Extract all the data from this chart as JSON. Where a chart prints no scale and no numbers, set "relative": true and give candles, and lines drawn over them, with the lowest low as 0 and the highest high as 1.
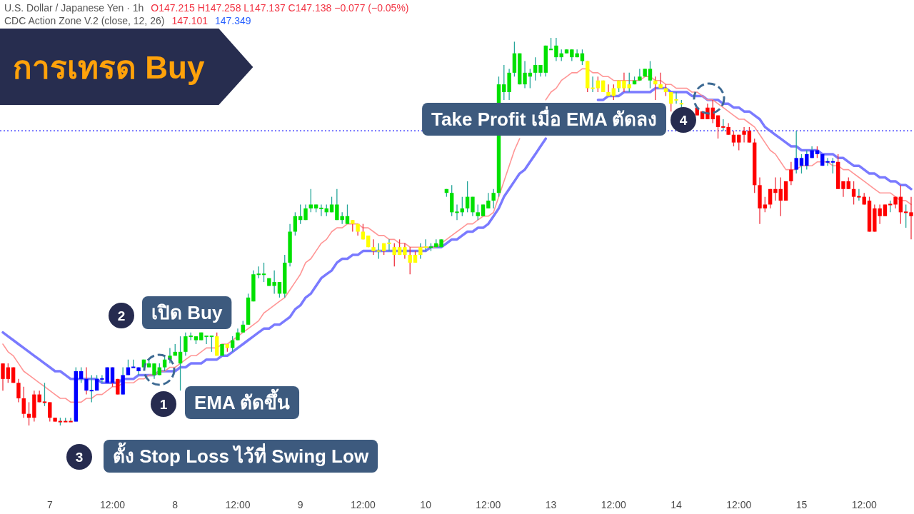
{
  "chart_data": {
    "type": "candlestick",
    "title": "การเทรด Buy",
    "relative": true,
    "categories": [
      null,
      null,
      null,
      null,
      null,
      null,
      null,
      null,
      null,
      "7",
      null,
      null,
      null,
      null,
      null,
      null,
      null,
      null,
      null,
      null,
      null,
      "12:00",
      null,
      null,
      null,
      null,
      null,
      null,
      null,
      null,
      null,
      null,
      null,
      "8",
      null,
      null,
      null,
      null,
      null,
      null,
      null,
      null,
      null,
      null,
      null,
      "12:00",
      null,
      null,
      null,
      null,
      null,
      null,
      null,
      null,
      null,
      null,
      null,
      "9",
      null,
      null,
      null,
      null,
      null,
      null,
      null,
      null,
      null,
      null,
      null,
      "12:00",
      null,
      null,
      null,
      null,
      null,
      null,
      null,
      null,
      null,
      null,
      null,
      "10",
      null,
      null,
      null,
      null,
      null,
      null,
      null,
      null,
      null,
      null,
      null,
      "12:00",
      null,
      null,
      null,
      null,
      null,
      null,
      null,
      null,
      null,
      null,
      null,
      "13",
      null,
      null,
      null,
      null,
      null,
      null,
      null,
      null,
      null,
      null,
      null,
      "12:00",
      null,
      null,
      null,
      null,
      null,
      null,
      null,
      null,
      null,
      null,
      null,
      "14",
      null,
      null,
      null,
      null,
      null,
      null,
      null,
      null,
      null,
      null,
      null,
      "12:00",
      null,
      null,
      null,
      null,
      null,
      null,
      null,
      null,
      null,
      null,
      null,
      "15",
      null,
      null,
      null,
      null,
      null,
      null,
      null,
      null,
      null,
      null,
      null,
      "12:00",
      null,
      null,
      null,
      null,
      null,
      null,
      null,
      null,
      null
    ],
    "ohlc": [
      [
        0.16,
        0.16,
        0.09,
        0.12
      ],
      [
        0.15,
        0.16,
        0.11,
        0.12
      ],
      [
        0.15,
        0.15,
        0.11,
        0.11
      ],
      [
        0.11,
        0.12,
        0.06,
        0.07
      ],
      [
        0.07,
        0.1,
        0.02,
        0.03
      ],
      [
        0.03,
        0.06,
        0,
        0.02
      ],
      [
        0.08,
        0.09,
        0.01,
        0.02
      ],
      [
        0.08,
        0.09,
        0.06,
        0.06
      ],
      [
        0.06,
        0.11,
        0.05,
        0.06
      ],
      [
        0.06,
        0.06,
        0.01,
        0.02
      ],
      [
        0.02,
        0.02,
        0.01,
        0.01
      ],
      [
        0.01,
        0.02,
        0,
        0.01
      ],
      [
        0.01,
        0.02,
        0.01,
        0.01
      ],
      [
        0.01,
        0.02,
        0.01,
        0.01
      ],
      [
        0.01,
        0.15,
        0.01,
        0.14
      ],
      [
        0.12,
        0.15,
        0.11,
        0.14
      ],
      [
        0.12,
        0.15,
        0.08,
        0.09
      ],
      [
        0.09,
        0.13,
        0.06,
        0.09
      ],
      [
        0.09,
        0.13,
        0.09,
        0.12
      ],
      [
        0.12,
        0.13,
        0.11,
        0.12
      ],
      [
        0.11,
        0.15,
        0.11,
        0.15
      ],
      [
        0.15,
        0.15,
        0.1,
        0.11
      ],
      [
        0.12,
        0.12,
        0.08,
        0.08
      ],
      [
        0.08,
        0.15,
        0.08,
        0.13
      ],
      [
        0.13,
        0.17,
        0.13,
        0.15
      ],
      [
        0.15,
        0.17,
        0.15,
        0.15
      ],
      [
        0.14,
        0.15,
        0.13,
        0.15
      ],
      [
        0.15,
        0.17,
        0.15,
        0.17
      ],
      [
        0.15,
        0.17,
        0.15,
        0.16
      ],
      [
        0.13,
        0.16,
        0.12,
        0.16
      ],
      [
        0.13,
        0.16,
        0.13,
        0.15
      ],
      [
        0.15,
        0.18,
        0.14,
        0.17
      ],
      [
        0.17,
        0.2,
        0.16,
        0.18
      ],
      [
        0.18,
        0.21,
        0.18,
        0.19
      ],
      [
        0.16,
        0.23,
        0.09,
        0.19
      ],
      [
        0.19,
        0.24,
        0.18,
        0.23
      ],
      [
        0.23,
        0.24,
        0.22,
        0.23
      ],
      [
        0.22,
        0.23,
        0.21,
        0.23
      ],
      [
        0.22,
        0.24,
        0.22,
        0.24
      ],
      [
        0.23,
        0.23,
        0.21,
        0.23
      ],
      [
        0.23,
        0.23,
        0.19,
        0.23
      ],
      [
        0.23,
        0.24,
        0.18,
        0.18
      ],
      [
        0.18,
        0.21,
        0.18,
        0.21
      ],
      [
        0.21,
        0.21,
        0.19,
        0.2
      ],
      [
        0.2,
        0.23,
        0.19,
        0.22
      ],
      [
        0.22,
        0.25,
        0.22,
        0.24
      ],
      [
        0.24,
        0.27,
        0.24,
        0.26
      ],
      [
        0.26,
        0.34,
        0.26,
        0.33
      ],
      [
        0.32,
        0.4,
        0.32,
        0.39
      ],
      [
        0.39,
        0.41,
        0.38,
        0.39
      ],
      [
        0.39,
        0.42,
        0.37,
        0.39
      ],
      [
        0.36,
        0.38,
        0.36,
        0.38
      ],
      [
        0.36,
        0.4,
        0.34,
        0.37
      ],
      [
        0.34,
        0.37,
        0.33,
        0.37
      ],
      [
        0.34,
        0.44,
        0.33,
        0.42
      ],
      [
        0.42,
        0.52,
        0.41,
        0.5
      ],
      [
        0.5,
        0.55,
        0.49,
        0.54
      ],
      [
        0.53,
        0.57,
        0.52,
        0.54
      ],
      [
        0.53,
        0.57,
        0.53,
        0.56
      ],
      [
        0.56,
        0.61,
        0.55,
        0.57
      ],
      [
        0.56,
        0.57,
        0.55,
        0.57
      ],
      [
        0.56,
        0.57,
        0.54,
        0.56
      ],
      [
        0.55,
        0.57,
        0.54,
        0.56
      ],
      [
        0.55,
        0.59,
        0.55,
        0.57
      ],
      [
        0.53,
        0.61,
        0.53,
        0.57
      ],
      [
        0.53,
        0.55,
        0.52,
        0.54
      ],
      [
        0.52,
        0.57,
        0.52,
        0.54
      ],
      [
        0.53,
        0.53,
        0.5,
        0.52
      ],
      [
        0.52,
        0.52,
        0.49,
        0.5
      ],
      [
        0.5,
        0.52,
        0.48,
        0.48
      ],
      [
        0.49,
        0.49,
        0.46,
        0.46
      ],
      [
        0.46,
        0.48,
        0.44,
        0.45
      ],
      [
        0.45,
        0.47,
        0.43,
        0.45
      ],
      [
        0.47,
        0.47,
        0.44,
        0.45
      ],
      [
        0.47,
        0.48,
        0.45,
        0.47
      ],
      [
        0.46,
        0.47,
        0.41,
        0.44
      ],
      [
        0.46,
        0.48,
        0.44,
        0.44
      ],
      [
        0.46,
        0.47,
        0.43,
        0.44
      ],
      [
        0.44,
        0.46,
        0.39,
        0.42
      ],
      [
        0.44,
        0.45,
        0.42,
        0.42
      ],
      [
        0.44,
        0.47,
        0.43,
        0.46
      ],
      [
        0.46,
        0.48,
        0.45,
        0.46
      ],
      [
        0.46,
        0.47,
        0.45,
        0.46
      ],
      [
        0.46,
        0.48,
        0.46,
        0.47
      ],
      [
        0.46,
        0.48,
        0.46,
        0.48
      ],
      [
        0.6,
        0.61,
        0.59,
        0.61
      ],
      [
        0.55,
        0.62,
        0.54,
        0.6
      ],
      [
        0.55,
        0.57,
        0.53,
        0.55
      ],
      [
        0.55,
        0.59,
        0.54,
        0.56
      ],
      [
        0.56,
        0.63,
        0.55,
        0.59
      ],
      [
        0.55,
        0.59,
        0.54,
        0.59
      ],
      [
        0.54,
        0.57,
        0.53,
        0.55
      ],
      [
        0.54,
        0.57,
        0.54,
        0.57
      ],
      [
        0.56,
        0.6,
        0.56,
        0.58
      ],
      [
        0.58,
        0.61,
        0.56,
        0.6
      ],
      [
        0.6,
        0.9,
        0.59,
        0.88
      ],
      [
        0.86,
        0.93,
        0.84,
        0.88
      ],
      [
        0.86,
        0.92,
        0.84,
        0.91
      ],
      [
        0.91,
        0.99,
        0.9,
        0.96
      ],
      [
        0.88,
        0.96,
        0.88,
        0.96
      ],
      [
        0.88,
        0.94,
        0.87,
        0.91
      ],
      [
        0.9,
        0.92,
        0.87,
        0.91
      ],
      [
        0.91,
        0.95,
        0.89,
        0.93
      ],
      [
        0.91,
        0.93,
        0.9,
        0.93
      ],
      [
        0.91,
        0.98,
        0.9,
        0.98
      ],
      [
        0.97,
        1,
        0.97,
        0.97
      ],
      [
        0.95,
        1,
        0.94,
        0.98
      ],
      [
        0.95,
        0.97,
        0.94,
        0.96
      ],
      [
        0.96,
        0.97,
        0.96,
        0.97
      ],
      [
        0.95,
        0.97,
        0.94,
        0.97
      ],
      [
        0.95,
        0.97,
        0.95,
        0.96
      ],
      [
        0.94,
        0.97,
        0.93,
        0.96
      ],
      [
        0.94,
        0.94,
        0.86,
        0.87
      ],
      [
        0.87,
        0.9,
        0.86,
        0.87
      ],
      [
        0.89,
        0.9,
        0.86,
        0.87
      ],
      [
        0.89,
        0.89,
        0.86,
        0.86
      ],
      [
        0.86,
        0.88,
        0.85,
        0.85
      ],
      [
        0.87,
        0.88,
        0.84,
        0.85
      ],
      [
        0.87,
        0.89,
        0.86,
        0.89
      ],
      [
        0.89,
        0.91,
        0.86,
        0.87
      ],
      [
        0.87,
        0.91,
        0.86,
        0.88
      ],
      [
        0.88,
        0.9,
        0.88,
        0.89
      ],
      [
        0.89,
        0.92,
        0.89,
        0.9
      ],
      [
        0.9,
        0.92,
        0.9,
        0.92
      ],
      [
        0.89,
        0.94,
        0.87,
        0.92
      ],
      [
        0.89,
        0.9,
        0.84,
        0.88
      ],
      [
        0.88,
        0.91,
        0.87,
        0.87
      ],
      [
        0.87,
        0.88,
        0.85,
        0.86
      ],
      [
        0.86,
        0.86,
        0.81,
        0.83
      ],
      [
        0.84,
        0.86,
        0.83,
        0.84
      ],
      [
        0.83,
        0.84,
        0.82,
        0.83
      ],
      null,
      null,
      [
        0.82,
        0.82,
        0.8,
        0.8
      ],
      [
        0.81,
        0.81,
        0.79,
        0.79
      ],
      [
        0.82,
        0.83,
        0.79,
        0.79
      ],
      [
        0.82,
        0.84,
        0.78,
        0.79
      ],
      [
        0.8,
        0.8,
        0.74,
        0.77
      ],
      [
        0.77,
        0.79,
        0.76,
        0.77
      ],
      [
        0.77,
        0.78,
        0.75,
        0.75
      ],
      [
        0.75,
        0.76,
        0.72,
        0.73
      ],
      [
        0.75,
        0.75,
        0.71,
        0.73
      ],
      [
        0.76,
        0.77,
        0.73,
        0.75
      ],
      [
        0.76,
        0.77,
        0.73,
        0.73
      ],
      [
        0.73,
        0.74,
        0.6,
        0.62
      ],
      [
        0.62,
        0.64,
        0.52,
        0.56
      ],
      [
        0.57,
        0.59,
        0.55,
        0.56
      ],
      [
        0.61,
        0.61,
        0.56,
        0.57
      ],
      [
        0.61,
        0.64,
        0.58,
        0.6
      ],
      [
        0.61,
        0.64,
        0.54,
        0.58
      ],
      [
        0.63,
        0.63,
        0.58,
        0.58
      ],
      [
        0.66,
        0.68,
        0.62,
        0.63
      ],
      [
        0.66,
        0.76,
        0.65,
        0.69
      ],
      [
        0.67,
        0.7,
        0.65,
        0.69
      ],
      [
        0.67,
        0.71,
        0.66,
        0.7
      ],
      [
        0.69,
        0.72,
        0.69,
        0.71
      ],
      [
        0.71,
        0.72,
        0.69,
        0.7
      ],
      [
        0.7,
        0.7,
        0.67,
        0.67
      ],
      [
        0.68,
        0.69,
        0.67,
        0.68
      ],
      [
        0.68,
        0.69,
        0.65,
        0.68
      ],
      [
        0.68,
        0.7,
        0.61,
        0.61
      ],
      [
        0.63,
        0.63,
        0.59,
        0.61
      ],
      [
        0.63,
        0.64,
        0.61,
        0.61
      ],
      [
        0.61,
        0.63,
        0.57,
        0.59
      ],
      [
        0.59,
        0.61,
        0.58,
        0.59
      ],
      [
        0.59,
        0.6,
        0.57,
        0.57
      ],
      [
        0.58,
        0.59,
        0.5,
        0.5
      ],
      [
        0.56,
        0.57,
        0.5,
        0.5
      ],
      [
        0.56,
        0.57,
        0.52,
        0.54
      ],
      [
        0.57,
        0.57,
        0.54,
        0.54
      ],
      [
        0.57,
        0.58,
        0.55,
        0.57
      ],
      [
        0.59,
        0.59,
        0.56,
        0.57
      ],
      [
        0.59,
        0.62,
        0.52,
        0.55
      ],
      [
        0.55,
        0.57,
        0.51,
        0.55
      ],
      [
        0.55,
        0.59,
        0.48,
        0.54
      ]
    ],
    "colors": [
      "#ff0000",
      "#ff0000",
      "#ff0000",
      "#ff0000",
      "#ff0000",
      "#ff0000",
      "#ff0000",
      "#ff0000",
      "#ff0000",
      "#ff0000",
      "#ff0000",
      "#ff0000",
      "#ff0000",
      "#ff0000",
      "#0000ff",
      "#0000ff",
      "#0000ff",
      "#0000ff",
      "#0000ff",
      "#0000ff",
      "#0000ff",
      "#0000ff",
      "#ff0000",
      "#0000ff",
      "#0000ff",
      "#0000ff",
      "#0000ff",
      "#00e000",
      "#00e000",
      "#00e000",
      "#00e000",
      "#00e000",
      "#00e000",
      "#00e000",
      "#00e000",
      "#00e000",
      "#00e000",
      "#00e000",
      "#00e000",
      "#00e000",
      "#00e000",
      "#ffff00",
      "#00e000",
      "#ffff00",
      "#00e000",
      "#00e000",
      "#00e000",
      "#00e000",
      "#00e000",
      "#00e000",
      "#00e000",
      "#00e000",
      "#00e000",
      "#00e000",
      "#00e000",
      "#00e000",
      "#00e000",
      "#00e000",
      "#00e000",
      "#00e000",
      "#00e000",
      "#00e000",
      "#00e000",
      "#00e000",
      "#00e000",
      "#00e000",
      "#00e000",
      "#ffff00",
      "#ffff00",
      "#ffff00",
      "#ffff00",
      "#ffff00",
      "#ffff00",
      "#ffff00",
      "#ffff00",
      "#ffff00",
      "#ffff00",
      "#ffff00",
      "#ffff00",
      "#ffff00",
      "#ffff00",
      "#ffff00",
      "#00e000",
      "#00e000",
      "#00e000",
      "#00e000",
      "#00e000",
      "#00e000",
      "#00e000",
      "#00e000",
      "#00e000",
      "#00e000",
      "#00e000",
      "#00e000",
      "#00e000",
      "#00e000",
      "#00e000",
      "#00e000",
      "#00e000",
      "#00e000",
      "#00e000",
      "#00e000",
      "#00e000",
      "#00e000",
      "#00e000",
      "#00e000",
      "#00e000",
      "#00e000",
      "#00e000",
      "#00e000",
      "#00e000",
      "#00e000",
      "#ffff00",
      "#ffff00",
      "#ffff00",
      "#ffff00",
      "#ffff00",
      "#ffff00",
      "#ffff00",
      "#ffff00",
      "#ffff00",
      "#00e000",
      "#00e000",
      "#00e000",
      "#00e000",
      "#ffff00",
      "#ffff00",
      "#ffff00",
      "#ffff00",
      "#ffff00",
      "#ffff00",
      null,
      null,
      "#ff0000",
      "#ff0000",
      "#ff0000",
      "#ff0000",
      "#ff0000",
      "#ff0000",
      "#ff0000",
      "#ff0000",
      "#ff0000",
      "#ff0000",
      "#ff0000",
      "#ff0000",
      "#ff0000",
      "#ff0000",
      "#ff0000",
      "#ff0000",
      "#ff0000",
      "#ff0000",
      "#ff0000",
      "#0000ff",
      "#0000ff",
      "#0000ff",
      "#0000ff",
      "#0000ff",
      "#0000ff",
      "#0000ff",
      "#0000ff",
      "#ff0000",
      "#ff0000",
      "#ff0000",
      "#ff0000",
      "#ff0000",
      "#ff0000",
      "#ff0000",
      "#ff0000",
      "#ff0000",
      "#ff0000",
      "#ff0000",
      "#ff0000",
      "#ff0000",
      "#ff0000",
      "#ff0000"
    ],
    "series": [
      {
        "type": "line",
        "color": "#6b6bff",
        "values": [
          0.24,
          0.23,
          0.22,
          0.21,
          0.2,
          0.19,
          0.18,
          0.17,
          0.16,
          0.15,
          0.14,
          0.14,
          0.13,
          0.12,
          0.12,
          0.12,
          0.12,
          0.12,
          0.12,
          0.11,
          0.11,
          0.11,
          0.11,
          0.12,
          0.12,
          0.12,
          0.13,
          0.13,
          0.13,
          0.13,
          0.14,
          0.14,
          0.14,
          0.14,
          0.15,
          0.15,
          0.16,
          0.16,
          0.16,
          0.17,
          0.17,
          0.17,
          0.18,
          0.18,
          0.19,
          0.2,
          0.21,
          0.22,
          0.23,
          0.24,
          0.25,
          0.25,
          0.26,
          0.26,
          0.27,
          0.28,
          0.3,
          0.31,
          0.33,
          0.34,
          0.36,
          0.38,
          0.39,
          0.4,
          0.42,
          0.43,
          0.43,
          0.44,
          0.44,
          0.45,
          0.45,
          0.45,
          0.45,
          0.45,
          0.45,
          0.45,
          0.45,
          0.45,
          0.45,
          0.45,
          0.45,
          0.45,
          0.46,
          0.46,
          0.46,
          0.47,
          0.48,
          0.48,
          0.49,
          0.5,
          0.5,
          0.51,
          0.51,
          0.52,
          0.54,
          0.56,
          0.59,
          0.61,
          0.63,
          0.65,
          0.66,
          0.68,
          0.7,
          0.72,
          0.74,
          null,
          null,
          null,
          null,
          null,
          null,
          null,
          null,
          null,
          0.84,
          0.84,
          0.85,
          0.85,
          0.85,
          0.86,
          0.86,
          0.86,
          0.86,
          0.86,
          0.86,
          0.87,
          0.87,
          0.87,
          0.86,
          0.86,
          0.86,
          0.86,
          0.85,
          0.85,
          0.85,
          0.84,
          0.84,
          0.84,
          0.83,
          0.83,
          0.82,
          0.82,
          0.81,
          0.81,
          0.8,
          0.79,
          0.77,
          0.76,
          0.75,
          0.74,
          0.73,
          0.72,
          0.72,
          0.71,
          0.71,
          0.71,
          0.71,
          0.7,
          0.7,
          0.7,
          0.69,
          0.69,
          0.68,
          0.67,
          0.67,
          0.66,
          0.65,
          0.65,
          0.64,
          0.64,
          0.63,
          0.63,
          0.62,
          0.62,
          0.61
        ]
      },
      {
        "type": "line",
        "color": "#ff8a8a",
        "values": [
          0.21,
          0.19,
          0.18,
          0.16,
          0.14,
          0.13,
          0.12,
          0.11,
          0.1,
          0.09,
          0.08,
          0.07,
          0.07,
          0.06,
          0.06,
          0.06,
          0.07,
          0.07,
          0.08,
          0.08,
          0.09,
          0.1,
          0.1,
          0.11,
          0.11,
          0.11,
          0.12,
          0.12,
          0.13,
          0.13,
          0.14,
          0.14,
          0.15,
          0.15,
          0.16,
          0.17,
          0.18,
          0.18,
          0.19,
          0.2,
          0.2,
          0.2,
          0.21,
          0.21,
          0.22,
          0.23,
          0.24,
          0.25,
          0.26,
          0.27,
          0.29,
          0.3,
          0.31,
          0.32,
          0.33,
          0.35,
          0.37,
          0.39,
          0.42,
          0.43,
          0.45,
          0.47,
          0.48,
          0.5,
          0.51,
          0.51,
          0.52,
          0.52,
          0.52,
          0.51,
          0.51,
          0.5,
          0.49,
          0.49,
          0.48,
          0.48,
          0.47,
          0.47,
          0.46,
          0.46,
          0.46,
          0.46,
          0.46,
          0.46,
          0.47,
          0.48,
          0.49,
          0.5,
          0.51,
          0.52,
          0.52,
          0.53,
          0.54,
          0.54,
          0.55,
          0.59,
          0.63,
          0.67,
          0.71,
          0.74,
          null,
          null,
          null,
          null,
          0.84,
          0.86,
          0.87,
          0.89,
          0.9,
          0.91,
          0.91,
          0.92,
          0.92,
          0.91,
          0.91,
          0.9,
          0.9,
          0.89,
          0.89,
          0.89,
          0.89,
          0.89,
          0.89,
          0.9,
          0.9,
          0.89,
          0.89,
          0.88,
          0.88,
          0.87,
          0.87,
          0.87,
          0.86,
          0.86,
          0.85,
          0.84,
          0.84,
          0.83,
          0.82,
          0.81,
          0.8,
          0.79,
          0.79,
          0.78,
          0.77,
          0.75,
          0.73,
          0.71,
          0.7,
          0.68,
          0.66,
          0.66,
          0.66,
          0.67,
          0.67,
          0.67,
          0.68,
          0.68,
          0.68,
          0.67,
          0.67,
          0.66,
          0.66,
          0.65,
          0.64,
          0.63,
          0.62,
          0.61,
          0.6,
          0.6,
          0.6,
          0.59,
          0.58,
          0.58,
          0.57
        ]
      }
    ],
    "ref_lines": [
      {
        "axis": "y",
        "value": 0.76,
        "color": "#3d3dff",
        "line_style": "dotted"
      }
    ],
    "annotations": [
      "U.S. Dollar / Japanese Yen · 1h",
      "O147.215 H147.258 L147.137 C147.138 −0.077 (−0.05%)",
      "CDC Action Zone V.2 (close, 12, 26)",
      "147.101",
      "147.349",
      "1",
      "EMA ตัดขึ้น",
      "2",
      "เปิด Buy",
      "3",
      "ตั้ง Stop Loss ไว้ที่ Swing Low",
      "4",
      "Take Profit เมื่อ EMA ตัดลง"
    ]
  }
}
